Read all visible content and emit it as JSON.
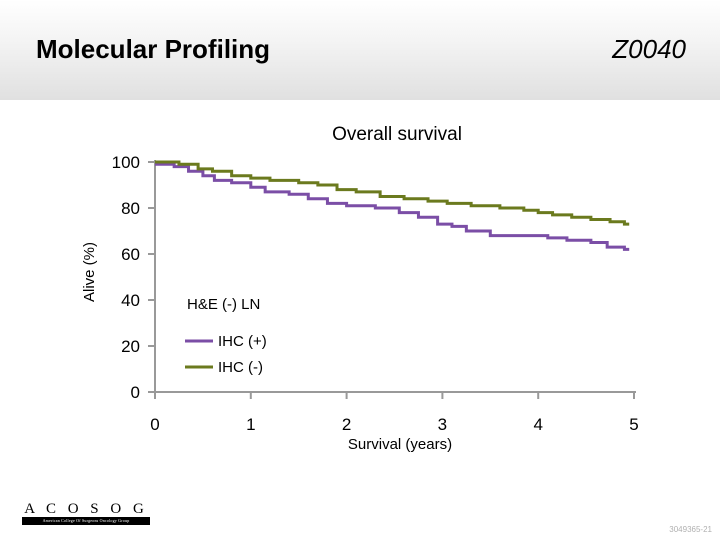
{
  "header": {
    "title": "Molecular Profiling",
    "code": "Z0040"
  },
  "chart_data": {
    "type": "line",
    "title": "Overall survival",
    "xlabel": "Survival (years)",
    "ylabel": "Alive (%)",
    "xlim": [
      0,
      5
    ],
    "ylim": [
      0,
      100
    ],
    "xticks": [
      "0",
      "1",
      "2",
      "3",
      "4",
      "5"
    ],
    "yticks": [
      "0",
      "20",
      "40",
      "60",
      "80",
      "100"
    ],
    "annotation": "H&E (-) LN",
    "colors": {
      "ihc_pos": "#7b4ea6",
      "ihc_neg": "#6b7a1e",
      "axis": "#999999"
    },
    "series": [
      {
        "name": "IHC (+)",
        "color": "#7b4ea6",
        "x": [
          0,
          0.2,
          0.35,
          0.5,
          0.62,
          0.8,
          1.0,
          1.15,
          1.4,
          1.6,
          1.8,
          2.0,
          2.3,
          2.55,
          2.75,
          2.95,
          3.1,
          3.25,
          3.5,
          3.75,
          3.95,
          4.1,
          4.3,
          4.55,
          4.72,
          4.9
        ],
        "y": [
          99,
          98,
          96,
          94,
          92,
          91,
          89,
          87,
          86,
          84,
          82,
          81,
          80,
          78,
          76,
          73,
          72,
          70,
          68,
          68,
          68,
          67,
          66,
          65,
          63,
          62
        ]
      },
      {
        "name": "IHC (-)",
        "color": "#6b7a1e",
        "x": [
          0,
          0.25,
          0.45,
          0.6,
          0.8,
          1.0,
          1.2,
          1.5,
          1.7,
          1.9,
          2.1,
          2.35,
          2.6,
          2.85,
          3.05,
          3.3,
          3.6,
          3.85,
          4.0,
          4.15,
          4.35,
          4.55,
          4.75,
          4.9
        ],
        "y": [
          100,
          99,
          97,
          96,
          94,
          93,
          92,
          91,
          90,
          88,
          87,
          85,
          84,
          83,
          82,
          81,
          80,
          79,
          78,
          77,
          76,
          75,
          74,
          73
        ]
      }
    ]
  },
  "footer": {
    "logo_letters": "A C O S O G",
    "logo_tagline": "American College Of Surgeons Oncology Group",
    "slide_id": "3049365-21"
  }
}
